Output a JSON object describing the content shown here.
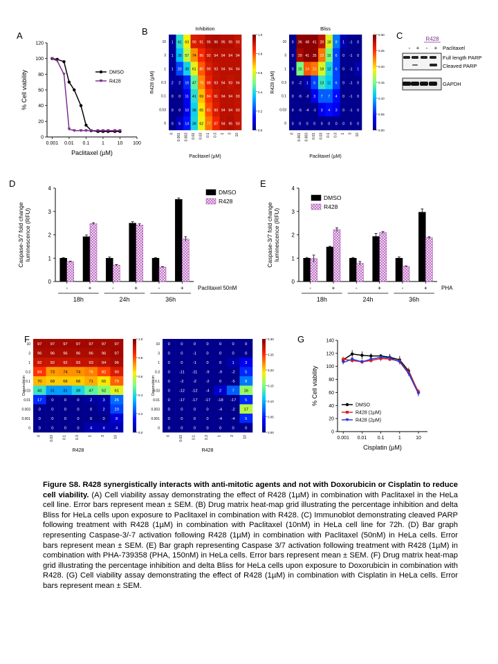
{
  "figure": {
    "caption_title": "Figure S8. R428 synergistically interacts with anti-mitotic agents and not with Doxorubicin or Cisplatin to reduce cell viability.",
    "caption_body": " (A) Cell viability assay demonstrating the effect of R428 (1µM) in combination with Paclitaxel in the HeLa cell line. Error bars represent mean ± SEM. (B) Drug matrix heat-map grid illustrating the percentage inhibition and delta Bliss for HeLa cells upon exposure to Paclitaxel in combination with R428. (C) Immunoblot demonstrating cleaved PARP following treatment with R428 (1µM) in combination with Paclitaxel (10nM) in HeLa cell line for 72h. (D) Bar graph representing Caspase-3/-7 activation following R428 (1µM) in combination with Paclitaxel (50nM) in HeLa cells. Error bars represent mean ± SEM. (E) Bar graph representing Caspase 3/7 activation following treatment with R428 (1µM) in combination with PHA-739358 (PHA, 150nM) in HeLa cells. Error bars represent mean ± SEM. (F) Drug matrix heat-map grid illustrating the percentage inhibition and delta Bliss for HeLa cells upon exposure to Doxorubicin in combination with R428. (G) Cell viability assay demonstrating the effect of R428 (1µM) in combination with Cisplatin in HeLa cells. Error bars represent mean ± SEM."
  },
  "panels": {
    "A": {
      "label": "A",
      "chart_data": {
        "type": "line",
        "xlabel": "Paclitaxel (µM)",
        "ylabel": "% Cell viability",
        "xscale": "log",
        "x_ticks": [
          "0.001",
          "0.01",
          "0.1",
          "1",
          "10",
          "100"
        ],
        "y_ticks": [
          "0",
          "20",
          "40",
          "60",
          "80",
          "100",
          "120"
        ],
        "ylim": [
          0,
          120
        ],
        "series": [
          {
            "name": "DMSO",
            "color": "#000000",
            "marker": "circle",
            "x": [
              0.001,
              0.002,
              0.005,
              0.01,
              0.02,
              0.05,
              0.1,
              0.2,
              0.5,
              1,
              2,
              5,
              10
            ],
            "y": [
              100,
              99,
              96,
              70,
              60,
              40,
              15,
              8,
              7,
              7,
              7,
              7,
              7
            ]
          },
          {
            "name": "R428",
            "color": "#7b2d8e",
            "marker": "triangle",
            "x": [
              0.001,
              0.002,
              0.005,
              0.01,
              0.02,
              0.05,
              0.1,
              0.2,
              0.5,
              1,
              2,
              5,
              10
            ],
            "y": [
              100,
              97,
              80,
              10,
              8,
              8,
              8,
              8,
              8,
              8,
              8,
              8,
              8
            ]
          }
        ]
      }
    },
    "B_inhibition": {
      "label": "B",
      "chart_data": {
        "type": "heatmap",
        "title": "Inhibition",
        "xlabel": "Paclitaxel (µM)",
        "ylabel": "R428 (µM)",
        "x_ticks": [
          "0",
          "0.001",
          "0.003",
          "0.01",
          "0.03",
          "0.1",
          "0.3",
          "1",
          "3",
          "10"
        ],
        "y_ticks": [
          "10",
          "3",
          "1",
          "0.3",
          "0.1",
          "0.03",
          "0"
        ],
        "colorbar_ticks": [
          "0.0",
          "0.2",
          "0.4",
          "0.6",
          "0.8",
          "1.0"
        ],
        "values": [
          [
            1,
            41,
            63,
            90,
            91,
            95,
            96,
            95,
            95,
            93
          ],
          [
            1,
            35,
            57,
            74,
            86,
            92,
            94,
            94,
            94,
            94
          ],
          [
            1,
            20,
            38,
            61,
            80,
            90,
            93,
            94,
            94,
            94
          ],
          [
            2,
            2,
            16,
            47,
            75,
            88,
            93,
            94,
            93,
            94
          ],
          [
            0,
            0,
            11,
            41,
            69,
            84,
            91,
            94,
            94,
            93
          ],
          [
            0,
            0,
            10,
            38,
            65,
            81,
            90,
            94,
            94,
            93
          ],
          [
            0,
            5,
            14,
            39,
            62,
            77,
            87,
            94,
            95,
            93
          ]
        ]
      }
    },
    "B_bliss": {
      "chart_data": {
        "type": "heatmap",
        "title": "Bliss",
        "xlabel": "Paclitaxel (µM)",
        "ylabel": "R428 (µM)",
        "x_ticks": [
          "0",
          "0.001",
          "0.003",
          "0.01",
          "0.03",
          "0.1",
          "0.3",
          "1",
          "3",
          "10"
        ],
        "y_ticks": [
          "10",
          "3",
          "1",
          "0.3",
          "0.1",
          "0.03",
          "0"
        ],
        "colorbar_ticks": [
          "0.00",
          "0.05",
          "0.10",
          "0.15",
          "0.20",
          "0.25",
          "0.30"
        ],
        "values": [
          [
            0,
            36,
            48,
            41,
            28,
            18,
            8,
            1,
            -1,
            0
          ],
          [
            0,
            29,
            41,
            35,
            23,
            15,
            6,
            0,
            -1,
            0
          ],
          [
            0,
            15,
            24,
            23,
            18,
            12,
            6,
            0,
            -1,
            1
          ],
          [
            0,
            -2,
            1,
            6,
            13,
            11,
            6,
            0,
            -1,
            0
          ],
          [
            0,
            -5,
            -3,
            3,
            7,
            7,
            4,
            0,
            -1,
            0
          ],
          [
            0,
            -5,
            -4,
            -1,
            3,
            4,
            3,
            0,
            -1,
            0
          ],
          [
            0,
            0,
            0,
            0,
            0,
            0,
            0,
            0,
            0,
            0
          ]
        ]
      }
    },
    "C": {
      "label": "C",
      "treatment_label": "R428",
      "lane_signs": [
        "-",
        "+",
        "-",
        "+"
      ],
      "row_labels": [
        "Paclitaxel",
        "Full length PARP",
        "Cleaved PARP",
        "GAPDH"
      ]
    },
    "D": {
      "label": "D",
      "chart_data": {
        "type": "bar",
        "ylabel": "Caspase-3/7 fold change luminescence (RFU)",
        "y_ticks": [
          "0",
          "1",
          "2",
          "3",
          "4"
        ],
        "ylim": [
          0,
          4
        ],
        "sign_labels": [
          "-",
          "+",
          "-",
          "+",
          "-",
          "+"
        ],
        "treatment_label": "Paclitaxel 50nM",
        "timepoints": [
          "18h",
          "24h",
          "36h"
        ],
        "series": [
          {
            "name": "DMSO",
            "pattern": "solid",
            "values": [
              1.0,
              1.92,
              1.0,
              2.5,
              1.0,
              3.52
            ],
            "err": [
              0.02,
              0.07,
              0.05,
              0.06,
              0.02,
              0.06
            ]
          },
          {
            "name": "R428",
            "pattern": "hatched",
            "values": [
              0.85,
              2.48,
              0.7,
              2.42,
              0.62,
              1.82
            ],
            "err": [
              0.02,
              0.04,
              0.03,
              0.05,
              0.02,
              0.1
            ]
          }
        ]
      }
    },
    "E": {
      "label": "E",
      "chart_data": {
        "type": "bar",
        "ylabel": "Caspase-3/7 fold change luminescence (RFU)",
        "y_ticks": [
          "0",
          "1",
          "2",
          "3",
          "4"
        ],
        "ylim": [
          0,
          4
        ],
        "sign_labels": [
          "-",
          "+",
          "-",
          "+",
          "-",
          "+"
        ],
        "treatment_label": "PHA",
        "timepoints": [
          "18h",
          "24h",
          "36h"
        ],
        "series": [
          {
            "name": "DMSO",
            "pattern": "solid",
            "values": [
              1.0,
              1.48,
              1.0,
              1.93,
              1.0,
              2.97
            ],
            "err": [
              0.03,
              0.03,
              0.03,
              0.13,
              0.05,
              0.14
            ]
          },
          {
            "name": "R428",
            "pattern": "hatched",
            "values": [
              0.98,
              2.22,
              0.78,
              2.1,
              0.65,
              1.88
            ],
            "err": [
              0.15,
              0.08,
              0.08,
              0.04,
              0.02,
              0.04
            ]
          }
        ]
      }
    },
    "F_inhibition": {
      "label": "F",
      "chart_data": {
        "type": "heatmap",
        "xlabel": "R428",
        "ylabel": "Doxorubicin",
        "x_ticks": [
          "0",
          "0.03",
          "0.1",
          "0.3",
          "1",
          "3",
          "10"
        ],
        "y_ticks": [
          "10",
          "3",
          "1",
          "0.3",
          "0.1",
          "0.03",
          "0.01",
          "0.003",
          "0.001",
          "0"
        ],
        "colorbar_ticks": [
          "0.0",
          "0.2",
          "0.4",
          "0.6",
          "0.8",
          "1.0"
        ],
        "values": [
          [
            97,
            97,
            97,
            97,
            97,
            97,
            97
          ],
          [
            96,
            96,
            96,
            96,
            96,
            96,
            97
          ],
          [
            92,
            92,
            92,
            93,
            93,
            94,
            96
          ],
          [
            84,
            73,
            74,
            74,
            76,
            82,
            90
          ],
          [
            70,
            68,
            68,
            68,
            71,
            65,
            79
          ],
          [
            43,
            31,
            31,
            39,
            47,
            52,
            61
          ],
          [
            17,
            0,
            0,
            0,
            2,
            3,
            25
          ],
          [
            0,
            0,
            0,
            0,
            0,
            2,
            20
          ],
          [
            0,
            0,
            0,
            0,
            0,
            0,
            8
          ],
          [
            0,
            0,
            0,
            0,
            4,
            4,
            4
          ]
        ]
      }
    },
    "F_bliss": {
      "chart_data": {
        "type": "heatmap",
        "xlabel": "R428",
        "ylabel": "Doxorubicin",
        "x_ticks": [
          "0",
          "0.03",
          "0.1",
          "0.3",
          "1",
          "3",
          "10"
        ],
        "y_ticks": [
          "10",
          "3",
          "1",
          "0.3",
          "0.1",
          "0.03",
          "0.01",
          "0.003",
          "0.001",
          "0"
        ],
        "colorbar_ticks": [
          "0.00",
          "0.05",
          "0.10",
          "0.15",
          "0.20",
          "0.25",
          "0.30"
        ],
        "values": [
          [
            0,
            0,
            0,
            0,
            0,
            0,
            0
          ],
          [
            0,
            0,
            -1,
            0,
            0,
            0,
            0
          ],
          [
            0,
            0,
            -1,
            0,
            0,
            1,
            3
          ],
          [
            0,
            -11,
            -11,
            -9,
            -9,
            -2,
            5
          ],
          [
            0,
            -2,
            -2,
            -2,
            0,
            -5,
            8
          ],
          [
            0,
            -12,
            -12,
            -4,
            2,
            7,
            16
          ],
          [
            0,
            -17,
            -17,
            -17,
            -18,
            -17,
            5
          ],
          [
            0,
            0,
            0,
            0,
            -4,
            -2,
            17
          ],
          [
            0,
            0,
            0,
            0,
            -4,
            -4,
            5
          ],
          [
            0,
            0,
            0,
            0,
            0,
            0,
            0
          ]
        ]
      }
    },
    "G": {
      "label": "G",
      "chart_data": {
        "type": "line",
        "xlabel": "Cisplatin (µM)",
        "ylabel": "% Cell viability",
        "xscale": "log",
        "x_ticks": [
          "0.001",
          "0.01",
          "0.1",
          "1",
          "10"
        ],
        "y_ticks": [
          "0",
          "20",
          "40",
          "60",
          "80",
          "100",
          "120",
          "140"
        ],
        "ylim": [
          0,
          140
        ],
        "series": [
          {
            "name": "DMSO",
            "color": "#000000",
            "marker": "circle",
            "x": [
              0.001,
              0.003,
              0.01,
              0.03,
              0.1,
              0.3,
              1,
              3,
              10
            ],
            "y": [
              110,
              119,
              117,
              116,
              116,
              114,
              110,
              93,
              60
            ],
            "err": [
              3,
              6,
              6,
              4,
              3,
              5,
              6,
              5,
              5
            ]
          },
          {
            "name": "R428 (1µM)",
            "color": "#e0201f",
            "marker": "square",
            "x": [
              0.001,
              0.003,
              0.01,
              0.03,
              0.1,
              0.3,
              1,
              3,
              10
            ],
            "y": [
              111,
              109,
              107,
              109,
              112,
              111,
              108,
              91,
              61
            ],
            "err": [
              4,
              3,
              3,
              3,
              4,
              3,
              5,
              4,
              4
            ]
          },
          {
            "name": "R428 (2µM)",
            "color": "#2436d6",
            "marker": "triangle",
            "x": [
              0.001,
              0.003,
              0.01,
              0.03,
              0.1,
              0.3,
              1,
              3,
              10
            ],
            "y": [
              106,
              111,
              107,
              111,
              114,
              113,
              107,
              89,
              58
            ],
            "err": [
              3,
              3,
              3,
              3,
              3,
              3,
              4,
              4,
              4
            ]
          }
        ]
      }
    }
  }
}
